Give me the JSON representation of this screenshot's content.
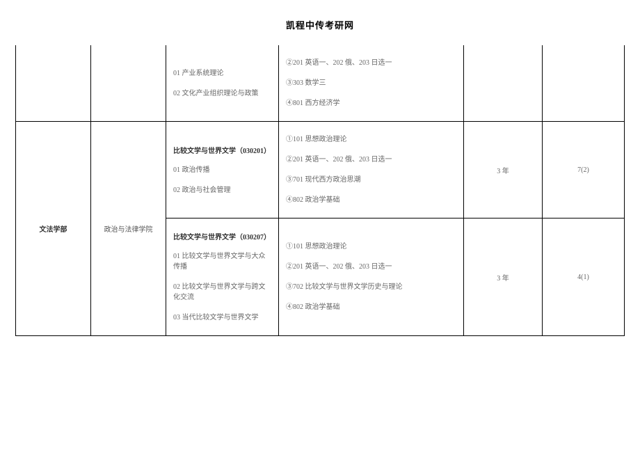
{
  "title": "凯程中传考研网",
  "row0": {
    "major_lines": [
      "01 产业系统理论",
      "02 文化产业组织理论与政策"
    ],
    "exam_lines": [
      "②201 英语一、202 俄、203 日选一",
      "③303 数学三",
      "④801 西方经济学"
    ]
  },
  "dept_label": "文法学部",
  "school_label": "政治与法律学院",
  "row1": {
    "major_title": "比较文学与世界文学（030201）",
    "major_lines": [
      "01 政治传播",
      "02 政治与社会管理"
    ],
    "exam_lines": [
      "①101 思想政治理论",
      "②201 英语一、202 俄、203 日选一",
      "③701 现代西方政治思潮",
      "④802 政治学基础"
    ],
    "duration": "3 年",
    "quota": "7(2)"
  },
  "row2": {
    "major_title": "比较文学与世界文学（030207）",
    "major_lines": [
      "01 比较文学与世界文学与大众传播",
      "02 比较文学与世界文学与跨文化交流",
      "03 当代比较文学与世界文学"
    ],
    "exam_lines": [
      "①101 思想政治理论",
      "②201 英语一、202 俄、203 日选一",
      "③702 比较文学与世界文学历史与理论",
      "④802 政治学基础"
    ],
    "duration": "3 年",
    "quota": "4(1)"
  }
}
